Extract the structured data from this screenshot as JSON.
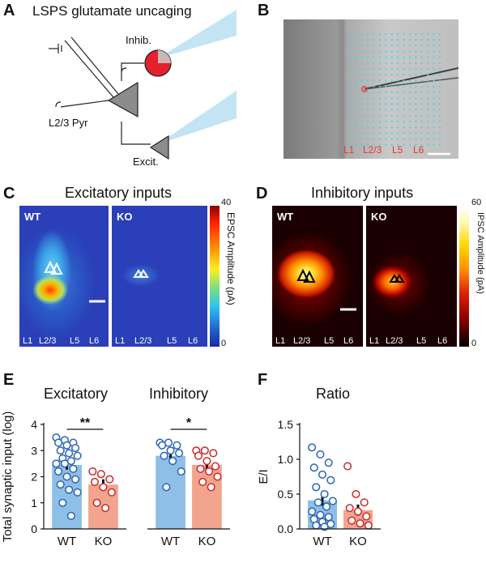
{
  "panels": {
    "A": {
      "letter": "A",
      "title": "LSPS glutamate uncaging",
      "inhib_label": "Inhib.",
      "pyr_label": "L2/3 Pyr",
      "excit_label": "Excit."
    },
    "B": {
      "letter": "B",
      "layers": [
        "L1",
        "L2/3",
        "L5",
        "L6"
      ]
    },
    "C": {
      "letter": "C",
      "title": "Excitatory inputs",
      "wt": "WT",
      "ko": "KO",
      "layers": [
        "L1",
        "L2/3",
        "L5",
        "L6"
      ],
      "cbar_max": "40",
      "cbar_min": "0",
      "cbar_title": "EPSC Amplitude (pA)"
    },
    "D": {
      "letter": "D",
      "title": "Inhibitory inputs",
      "wt": "WT",
      "ko": "KO",
      "layers": [
        "L1",
        "L2/3",
        "L5",
        "L6"
      ],
      "cbar_max": "60",
      "cbar_min": "0",
      "cbar_title": "IPSC Amplitude (pA)"
    },
    "E": {
      "letter": "E",
      "title_excit": "Excitatory",
      "title_inhib": "Inhibitory"
    },
    "F": {
      "letter": "F",
      "title": "Ratio"
    }
  },
  "colors": {
    "wt": "#2a64b8",
    "ko": "#cc2a2a",
    "wt_bar": "#8ebfe6",
    "ko_bar": "#f2a48e"
  },
  "chart_data": [
    {
      "type": "bar",
      "panel": "E-excitatory",
      "ylabel": "Total synaptic input (log)",
      "ylim": [
        0,
        4
      ],
      "yticks": [
        "0",
        "1",
        "2",
        "3",
        "4"
      ],
      "categories": [
        "WT",
        "KO"
      ],
      "values": [
        2.45,
        1.7
      ],
      "errors": [
        0.18,
        0.2
      ],
      "significance": "**",
      "points": {
        "WT": [
          3.5,
          3.4,
          3.3,
          3.3,
          3.2,
          3.1,
          3.0,
          2.9,
          2.8,
          2.7,
          2.6,
          2.5,
          2.5,
          2.3,
          2.2,
          2.0,
          1.9,
          1.7,
          1.5,
          1.4,
          1.0,
          0.5
        ],
        "KO": [
          2.2,
          2.1,
          1.9,
          1.8,
          1.6,
          1.4,
          1.0,
          0.8
        ]
      }
    },
    {
      "type": "bar",
      "panel": "E-inhibitory",
      "ylim": [
        0,
        4
      ],
      "categories": [
        "WT",
        "KO"
      ],
      "values": [
        2.8,
        2.45
      ],
      "errors": [
        0.15,
        0.15
      ],
      "significance": "*",
      "points": {
        "WT": [
          3.3,
          3.3,
          3.2,
          3.2,
          3.0,
          2.9,
          2.8,
          2.6,
          2.2,
          1.6
        ],
        "KO": [
          3.0,
          3.0,
          2.9,
          2.8,
          2.6,
          2.4,
          2.3,
          2.2,
          2.0,
          1.8,
          1.6
        ]
      }
    },
    {
      "type": "bar",
      "panel": "F-ratio",
      "ylabel": "E/I",
      "ylim": [
        0,
        1.5
      ],
      "yticks": [
        "0.0",
        "0.5",
        "1.0",
        "1.5"
      ],
      "categories": [
        "WT",
        "KO"
      ],
      "values": [
        0.41,
        0.27
      ],
      "errors": [
        0.08,
        0.08
      ],
      "points": {
        "WT": [
          1.17,
          1.07,
          0.95,
          0.88,
          0.78,
          0.7,
          0.6,
          0.5,
          0.4,
          0.38,
          0.32,
          0.25,
          0.2,
          0.17,
          0.14,
          0.1,
          0.07,
          0.05,
          0.03
        ],
        "KO": [
          0.9,
          0.5,
          0.38,
          0.3,
          0.25,
          0.18,
          0.12,
          0.08,
          0.05
        ]
      }
    }
  ]
}
